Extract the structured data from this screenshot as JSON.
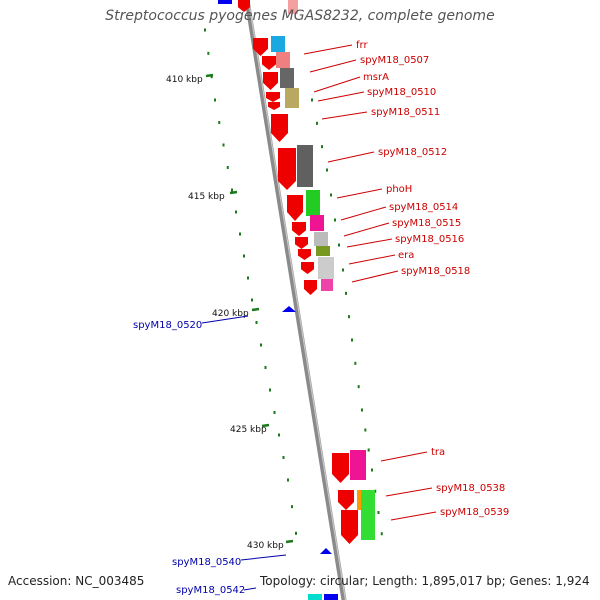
{
  "title": "Streptococcus pyogenes MGAS8232, complete genome",
  "footer": {
    "accession_label": "Accession: NC_003485",
    "topology_label": "Topology: circular; Length: 1,895,017 bp; Genes: 1,924"
  },
  "colors": {
    "backbone": "#8a8a8a",
    "forward_label": "#cc0000",
    "reverse_label": "#0000aa",
    "forward_arrow": "#ee0000",
    "reverse_arrow": "#0000ee",
    "tick_mark": "#1a7a1a"
  },
  "scale_ticks": [
    {
      "kbp": 410,
      "label": "410 kbp"
    },
    {
      "kbp": 415,
      "label": "415 kbp"
    },
    {
      "kbp": 420,
      "label": "420 kbp"
    },
    {
      "kbp": 425,
      "label": "425 kbp"
    },
    {
      "kbp": 430,
      "label": "430 kbp"
    }
  ],
  "genes_forward": [
    {
      "name": "frr"
    },
    {
      "name": "spyM18_0507"
    },
    {
      "name": "msrA"
    },
    {
      "name": "spyM18_0510"
    },
    {
      "name": "spyM18_0511"
    },
    {
      "name": "spyM18_0512"
    },
    {
      "name": "phoH"
    },
    {
      "name": "spyM18_0514"
    },
    {
      "name": "spyM18_0515"
    },
    {
      "name": "spyM18_0516"
    },
    {
      "name": "era"
    },
    {
      "name": "spyM18_0518"
    },
    {
      "name": "tra"
    },
    {
      "name": "spyM18_0538"
    },
    {
      "name": "spyM18_0539"
    }
  ],
  "genes_reverse": [
    {
      "name": "spyM18_0520"
    },
    {
      "name": "spyM18_0540"
    },
    {
      "name": "spyM18_0542"
    }
  ]
}
